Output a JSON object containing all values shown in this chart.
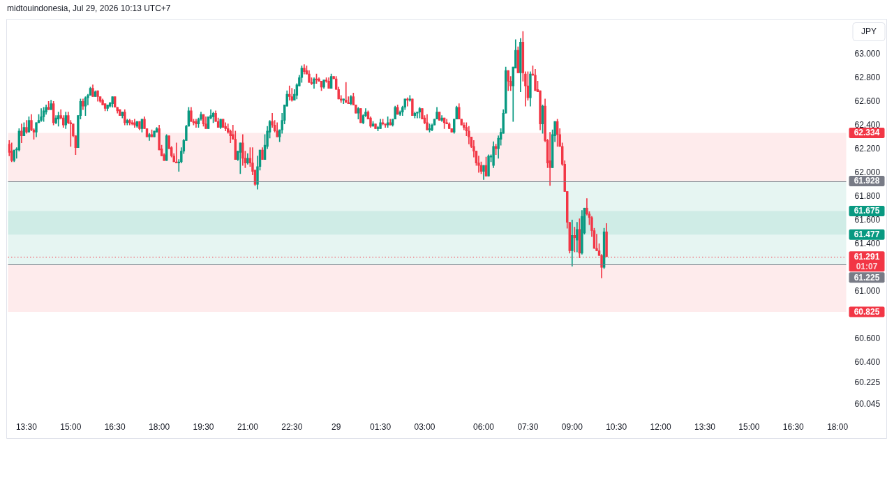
{
  "chart_data": {
    "type": "candlestick",
    "annotations": [
      "midtouindonesia, Jul 29, 2026 10:13 UTC+7"
    ],
    "ylabel": "JPY",
    "categories": [
      null,
      null,
      null,
      null,
      null,
      null,
      null,
      "13:30",
      null,
      null,
      null,
      null,
      null,
      null,
      null,
      null,
      null,
      null,
      null,
      null,
      null,
      null,
      null,
      null,
      null,
      "15:00",
      null,
      null,
      null,
      null,
      null,
      null,
      null,
      null,
      null,
      null,
      null,
      null,
      null,
      null,
      null,
      null,
      null,
      "16:30",
      null,
      null,
      null,
      null,
      null,
      null,
      null,
      null,
      null,
      null,
      null,
      null,
      null,
      null,
      null,
      null,
      null,
      "18:00",
      null,
      null,
      null,
      null,
      null,
      null,
      null,
      null,
      null,
      null,
      null,
      null,
      null,
      null,
      null,
      null,
      null,
      "19:30",
      null,
      null,
      null,
      null,
      null,
      null,
      null,
      null,
      null,
      null,
      null,
      null,
      null,
      null,
      null,
      null,
      null,
      "21:00",
      null,
      null,
      null,
      null,
      null,
      null,
      null,
      null,
      null,
      null,
      null,
      null,
      null,
      null,
      null,
      null,
      null,
      "22:30",
      null,
      null,
      null,
      null,
      null,
      null,
      null,
      null,
      null,
      null,
      null,
      null,
      null,
      null,
      null,
      null,
      null,
      "29",
      null,
      null,
      null,
      null,
      null,
      null,
      null,
      null,
      null,
      null,
      null,
      null,
      null,
      null,
      null,
      null,
      null,
      "01:30",
      null,
      null,
      null,
      null,
      null,
      null,
      null,
      null,
      null,
      null,
      null,
      null,
      null,
      null,
      null,
      null,
      null,
      "03:00",
      null,
      null,
      null,
      null,
      null,
      null,
      null,
      null,
      null,
      null,
      null,
      null,
      null,
      null,
      null,
      null,
      null,
      null,
      null,
      null,
      null,
      null,
      null,
      "06:00",
      null,
      null,
      null,
      null,
      null,
      null,
      null,
      null,
      null,
      null,
      null,
      null,
      null,
      null,
      null,
      null,
      null,
      "07:30",
      null,
      null,
      null,
      null,
      null,
      null,
      null,
      null,
      null,
      null,
      null,
      null,
      null,
      null,
      null,
      null,
      null,
      "09:00",
      null,
      null,
      null,
      null,
      null,
      null,
      null,
      null,
      null,
      null,
      null,
      null,
      null,
      null,
      null,
      null,
      null,
      "10:30",
      null,
      null,
      null,
      null,
      null,
      null,
      null,
      null,
      null,
      null,
      null,
      null,
      null,
      null,
      null,
      null,
      null,
      "12:00",
      null,
      null,
      null,
      null,
      null,
      null,
      null,
      null,
      null,
      null,
      null,
      null,
      null,
      null,
      null,
      null,
      null,
      "13:30",
      null,
      null,
      null,
      null,
      null,
      null,
      null,
      null,
      null,
      null,
      null,
      null,
      null,
      null,
      null,
      null,
      null,
      "15:00",
      null,
      null,
      null,
      null,
      null,
      null,
      null,
      null,
      null,
      null,
      null,
      null,
      null,
      null,
      null,
      null,
      null,
      "16:30",
      null,
      null,
      null,
      null,
      null,
      null,
      null,
      null,
      null,
      null,
      null,
      null,
      null,
      null,
      null,
      null,
      null,
      "18:00",
      null,
      null,
      null
    ],
    "ohlc": [
      [
        62.24,
        62.27,
        62.14,
        62.17
      ],
      [
        62.18,
        62.25,
        62.09,
        62.1
      ],
      [
        62.1,
        62.19,
        62.09,
        62.19
      ],
      [
        62.19,
        62.21,
        62.12,
        62.2
      ],
      [
        62.19,
        62.37,
        62.18,
        62.35
      ],
      [
        62.35,
        62.41,
        62.25,
        62.31
      ],
      [
        62.31,
        62.42,
        62.31,
        62.38
      ],
      [
        62.38,
        62.44,
        62.33,
        62.34
      ],
      [
        62.34,
        62.47,
        62.34,
        62.44
      ],
      [
        62.44,
        62.49,
        62.35,
        62.36
      ],
      [
        62.36,
        62.37,
        62.28,
        62.34
      ],
      [
        62.34,
        62.42,
        62.3,
        62.42
      ],
      [
        62.42,
        62.49,
        62.42,
        62.44
      ],
      [
        62.44,
        62.54,
        62.43,
        62.47
      ],
      [
        62.47,
        62.55,
        62.43,
        62.52
      ],
      [
        62.51,
        62.57,
        62.49,
        62.55
      ],
      [
        62.55,
        62.6,
        62.53,
        62.53
      ],
      [
        62.53,
        62.61,
        62.53,
        62.58
      ],
      [
        62.58,
        62.6,
        62.4,
        62.42
      ],
      [
        62.42,
        62.48,
        62.41,
        62.46
      ],
      [
        62.45,
        62.51,
        62.39,
        62.48
      ],
      [
        62.48,
        62.53,
        62.45,
        62.46
      ],
      [
        62.46,
        62.48,
        62.38,
        62.4
      ],
      [
        62.4,
        62.51,
        62.37,
        62.48
      ],
      [
        62.48,
        62.51,
        62.41,
        62.42
      ],
      [
        62.42,
        62.44,
        62.22,
        62.41
      ],
      [
        62.41,
        62.41,
        62.3,
        62.31
      ],
      [
        62.31,
        62.31,
        62.15,
        62.21
      ],
      [
        62.21,
        62.48,
        62.21,
        62.48
      ],
      [
        62.48,
        62.62,
        62.45,
        62.6
      ],
      [
        62.6,
        62.62,
        62.53,
        62.56
      ],
      [
        62.56,
        62.64,
        62.48,
        62.63
      ],
      [
        62.63,
        62.66,
        62.57,
        62.65
      ],
      [
        62.65,
        62.72,
        62.65,
        62.71
      ],
      [
        62.71,
        62.74,
        62.64,
        62.64
      ],
      [
        62.64,
        62.69,
        62.64,
        62.68
      ],
      [
        62.69,
        62.69,
        62.6,
        62.64
      ],
      [
        62.64,
        62.64,
        62.59,
        62.6
      ],
      [
        62.61,
        62.62,
        62.57,
        62.57
      ],
      [
        62.58,
        62.58,
        62.52,
        62.54
      ],
      [
        62.54,
        62.57,
        62.52,
        62.57
      ],
      [
        62.56,
        62.59,
        62.55,
        62.59
      ],
      [
        62.58,
        62.64,
        62.55,
        62.64
      ],
      [
        62.64,
        62.64,
        62.55,
        62.55
      ],
      [
        62.55,
        62.55,
        62.5,
        62.52
      ],
      [
        62.53,
        62.53,
        62.48,
        62.48
      ],
      [
        62.48,
        62.51,
        62.46,
        62.51
      ],
      [
        62.51,
        62.53,
        62.4,
        62.42
      ],
      [
        62.42,
        62.45,
        62.4,
        62.44
      ],
      [
        62.44,
        62.45,
        62.4,
        62.42
      ],
      [
        62.42,
        62.44,
        62.4,
        62.41
      ],
      [
        62.42,
        62.45,
        62.38,
        62.4
      ],
      [
        62.39,
        62.43,
        62.38,
        62.43
      ],
      [
        62.43,
        62.43,
        62.36,
        62.37
      ],
      [
        62.37,
        62.45,
        62.34,
        62.45
      ],
      [
        62.45,
        62.47,
        62.37,
        62.37
      ],
      [
        62.37,
        62.37,
        62.3,
        62.3
      ],
      [
        62.3,
        62.33,
        62.27,
        62.32
      ],
      [
        62.32,
        62.36,
        62.3,
        62.3
      ],
      [
        62.3,
        62.35,
        62.3,
        62.35
      ],
      [
        62.34,
        62.38,
        62.34,
        62.37
      ],
      [
        62.37,
        62.4,
        62.19,
        62.19
      ],
      [
        62.2,
        62.23,
        62.14,
        62.14
      ],
      [
        62.15,
        62.16,
        62.1,
        62.1
      ],
      [
        62.1,
        62.32,
        62.1,
        62.31
      ],
      [
        62.31,
        62.31,
        62.2,
        62.2
      ],
      [
        62.21,
        62.22,
        62.13,
        62.14
      ],
      [
        62.14,
        62.16,
        62.09,
        62.09
      ],
      [
        62.09,
        62.25,
        62.08,
        62.08
      ],
      [
        62.08,
        62.11,
        62.01,
        62.09
      ],
      [
        62.09,
        62.21,
        62.08,
        62.18
      ],
      [
        62.18,
        62.28,
        62.16,
        62.27
      ],
      [
        62.27,
        62.4,
        62.27,
        62.39
      ],
      [
        62.39,
        62.55,
        62.39,
        62.52
      ],
      [
        62.52,
        62.55,
        62.43,
        62.43
      ],
      [
        62.43,
        62.45,
        62.4,
        62.42
      ],
      [
        62.43,
        62.45,
        62.38,
        62.41
      ],
      [
        62.41,
        62.46,
        62.38,
        62.45
      ],
      [
        62.45,
        62.51,
        62.44,
        62.49
      ],
      [
        62.49,
        62.49,
        62.39,
        62.41
      ],
      [
        62.41,
        62.47,
        62.37,
        62.37
      ],
      [
        62.37,
        62.47,
        62.37,
        62.47
      ],
      [
        62.46,
        62.53,
        62.45,
        62.48
      ],
      [
        62.47,
        62.51,
        62.42,
        62.5
      ],
      [
        62.5,
        62.52,
        62.43,
        62.43
      ],
      [
        62.43,
        62.46,
        62.38,
        62.38
      ],
      [
        62.38,
        62.45,
        62.37,
        62.45
      ],
      [
        62.45,
        62.45,
        62.38,
        62.38
      ],
      [
        62.39,
        62.42,
        62.35,
        62.37
      ],
      [
        62.37,
        62.41,
        62.33,
        62.34
      ],
      [
        62.35,
        62.36,
        62.25,
        62.31
      ],
      [
        62.32,
        62.4,
        62.28,
        62.28
      ],
      [
        62.28,
        62.35,
        62.11,
        62.11
      ],
      [
        62.11,
        62.18,
        62.1,
        62.18
      ],
      [
        62.17,
        62.25,
        61.99,
        62.25
      ],
      [
        62.25,
        62.32,
        62.06,
        62.12
      ],
      [
        62.12,
        62.18,
        62.04,
        62.08
      ],
      [
        62.08,
        62.16,
        62.07,
        62.12
      ],
      [
        62.12,
        62.21,
        62.05,
        62.08
      ],
      [
        62.08,
        62.21,
        61.98,
        62.01
      ],
      [
        62.02,
        62.02,
        61.89,
        61.9
      ],
      [
        61.9,
        62.14,
        61.86,
        62.05
      ],
      [
        62.05,
        62.19,
        62.02,
        62.19
      ],
      [
        62.19,
        62.21,
        62.11,
        62.11
      ],
      [
        62.11,
        62.32,
        62.11,
        62.23
      ],
      [
        62.22,
        62.39,
        62.2,
        62.35
      ],
      [
        62.34,
        62.44,
        62.29,
        62.43
      ],
      [
        62.43,
        62.5,
        62.38,
        62.4
      ],
      [
        62.4,
        62.44,
        62.34,
        62.35
      ],
      [
        62.35,
        62.42,
        62.3,
        62.3
      ],
      [
        62.3,
        62.36,
        62.26,
        62.36
      ],
      [
        62.36,
        62.5,
        62.33,
        62.44
      ],
      [
        62.44,
        62.57,
        62.41,
        62.57
      ],
      [
        62.56,
        62.69,
        62.56,
        62.66
      ],
      [
        62.66,
        62.73,
        62.61,
        62.64
      ],
      [
        62.64,
        62.71,
        62.6,
        62.61
      ],
      [
        62.61,
        62.7,
        62.61,
        62.66
      ],
      [
        62.65,
        62.75,
        62.62,
        62.74
      ],
      [
        62.73,
        62.82,
        62.73,
        62.8
      ],
      [
        62.8,
        62.9,
        62.76,
        62.88
      ],
      [
        62.88,
        62.91,
        62.83,
        62.85
      ],
      [
        62.86,
        62.9,
        62.83,
        62.83
      ],
      [
        62.83,
        62.86,
        62.76,
        62.76
      ],
      [
        62.76,
        62.8,
        62.74,
        62.75
      ],
      [
        62.75,
        62.8,
        62.71,
        62.79
      ],
      [
        62.79,
        62.83,
        62.75,
        62.78
      ],
      [
        62.79,
        62.8,
        62.77,
        62.77
      ],
      [
        62.77,
        62.77,
        62.69,
        62.72
      ],
      [
        62.72,
        62.78,
        62.71,
        62.78
      ],
      [
        62.78,
        62.8,
        62.76,
        62.77
      ],
      [
        62.77,
        62.8,
        62.71,
        62.71
      ],
      [
        62.71,
        62.83,
        62.71,
        62.81
      ],
      [
        62.81,
        62.81,
        62.79,
        62.79
      ],
      [
        62.79,
        62.81,
        62.7,
        62.7
      ],
      [
        62.7,
        62.72,
        62.62,
        62.62
      ],
      [
        62.62,
        62.65,
        62.59,
        62.61
      ],
      [
        62.61,
        62.62,
        62.58,
        62.62
      ],
      [
        62.61,
        62.76,
        62.59,
        62.59
      ],
      [
        62.59,
        62.64,
        62.58,
        62.58
      ],
      [
        62.58,
        62.65,
        62.57,
        62.64
      ],
      [
        62.64,
        62.67,
        62.57,
        62.57
      ],
      [
        62.57,
        62.57,
        62.5,
        62.5
      ],
      [
        62.5,
        62.55,
        62.45,
        62.54
      ],
      [
        62.54,
        62.54,
        62.42,
        62.42
      ],
      [
        62.42,
        62.49,
        62.41,
        62.48
      ],
      [
        62.48,
        62.54,
        62.47,
        62.51
      ],
      [
        62.51,
        62.52,
        62.45,
        62.45
      ],
      [
        62.46,
        62.47,
        62.38,
        62.39
      ],
      [
        62.39,
        62.43,
        62.39,
        62.41
      ],
      [
        62.41,
        62.41,
        62.37,
        62.37
      ],
      [
        62.37,
        62.39,
        62.35,
        62.38
      ],
      [
        62.37,
        62.45,
        62.37,
        62.42
      ],
      [
        62.42,
        62.45,
        62.4,
        62.41
      ],
      [
        62.41,
        62.41,
        62.38,
        62.4
      ],
      [
        62.4,
        62.47,
        62.38,
        62.42
      ],
      [
        62.42,
        62.45,
        62.4,
        62.4
      ],
      [
        62.4,
        62.45,
        62.39,
        62.45
      ],
      [
        62.45,
        62.56,
        62.45,
        62.55
      ],
      [
        62.55,
        62.57,
        62.49,
        62.49
      ],
      [
        62.49,
        62.52,
        62.48,
        62.51
      ],
      [
        62.51,
        62.56,
        62.48,
        62.55
      ],
      [
        62.55,
        62.62,
        62.53,
        62.62
      ],
      [
        62.62,
        62.63,
        62.56,
        62.61
      ],
      [
        62.61,
        62.65,
        62.6,
        62.62
      ],
      [
        62.62,
        62.62,
        62.48,
        62.48
      ],
      [
        62.48,
        62.51,
        62.46,
        62.5
      ],
      [
        62.5,
        62.51,
        62.46,
        62.51
      ],
      [
        62.51,
        62.55,
        62.46,
        62.54
      ],
      [
        62.54,
        62.54,
        62.45,
        62.45
      ],
      [
        62.46,
        62.48,
        62.41,
        62.42
      ],
      [
        62.42,
        62.49,
        62.36,
        62.36
      ],
      [
        62.36,
        62.41,
        62.34,
        62.37
      ],
      [
        62.36,
        62.41,
        62.35,
        62.4
      ],
      [
        62.4,
        62.45,
        62.4,
        62.45
      ],
      [
        62.45,
        62.55,
        62.45,
        62.51
      ],
      [
        62.51,
        62.51,
        62.44,
        62.44
      ],
      [
        62.44,
        62.48,
        62.43,
        62.46
      ],
      [
        62.46,
        62.46,
        62.37,
        62.42
      ],
      [
        62.42,
        62.45,
        62.41,
        62.41
      ],
      [
        62.41,
        62.42,
        62.37,
        62.37
      ],
      [
        62.37,
        62.37,
        62.34,
        62.34
      ],
      [
        62.34,
        62.45,
        62.33,
        62.45
      ],
      [
        62.45,
        62.56,
        62.45,
        62.55
      ],
      [
        62.55,
        62.58,
        62.45,
        62.45
      ],
      [
        62.45,
        62.45,
        62.4,
        62.4
      ],
      [
        62.4,
        62.42,
        62.36,
        62.38
      ],
      [
        62.38,
        62.42,
        62.31,
        62.35
      ],
      [
        62.35,
        62.39,
        62.24,
        62.3
      ],
      [
        62.3,
        62.3,
        62.21,
        62.22
      ],
      [
        62.22,
        62.27,
        62.13,
        62.18
      ],
      [
        62.18,
        62.18,
        62.06,
        62.08
      ],
      [
        62.08,
        62.14,
        62.0,
        62.06
      ],
      [
        62.06,
        62.09,
        61.99,
        62.01
      ],
      [
        62.01,
        62.06,
        61.94,
        62.06
      ],
      [
        62.06,
        62.13,
        61.97,
        61.97
      ],
      [
        61.97,
        62.15,
        61.97,
        62.14
      ],
      [
        62.13,
        62.15,
        62.09,
        62.14
      ],
      [
        62.06,
        62.26,
        62.04,
        62.22
      ],
      [
        62.22,
        62.24,
        62.15,
        62.2
      ],
      [
        62.2,
        62.31,
        62.12,
        62.29
      ],
      [
        62.28,
        62.37,
        62.23,
        62.34
      ],
      [
        62.33,
        62.53,
        62.33,
        62.5
      ],
      [
        62.5,
        62.89,
        62.5,
        62.86
      ],
      [
        62.86,
        62.86,
        62.69,
        62.77
      ],
      [
        62.77,
        62.81,
        62.69,
        62.73
      ],
      [
        62.73,
        62.89,
        62.43,
        62.89
      ],
      [
        62.88,
        63.12,
        62.88,
        63.03
      ],
      [
        63.03,
        63.06,
        62.84,
        62.84
      ],
      [
        62.84,
        63.13,
        62.68,
        63.1
      ],
      [
        63.1,
        63.19,
        62.77,
        62.84
      ],
      [
        62.83,
        62.85,
        62.56,
        62.73
      ],
      [
        62.73,
        62.85,
        62.61,
        62.63
      ],
      [
        62.63,
        62.85,
        62.56,
        62.83
      ],
      [
        62.83,
        62.9,
        62.82,
        62.82
      ],
      [
        62.82,
        62.87,
        62.69,
        62.69
      ],
      [
        62.7,
        62.77,
        62.68,
        62.68
      ],
      [
        62.69,
        62.69,
        62.36,
        62.41
      ],
      [
        62.41,
        62.57,
        62.33,
        62.56
      ],
      [
        62.56,
        62.62,
        62.26,
        62.27
      ],
      [
        62.27,
        62.28,
        62.04,
        62.08
      ],
      [
        62.1,
        62.34,
        61.89,
        62.04
      ],
      [
        62.04,
        62.36,
        62.04,
        62.32
      ],
      [
        62.31,
        62.43,
        62.26,
        62.43
      ],
      [
        62.43,
        62.45,
        62.22,
        62.32
      ],
      [
        62.32,
        62.37,
        62.22,
        62.22
      ],
      [
        62.22,
        62.25,
        62.06,
        62.07
      ],
      [
        62.07,
        62.1,
        61.84,
        61.84
      ],
      [
        61.84,
        61.84,
        61.53,
        61.58
      ],
      [
        61.58,
        61.58,
        61.32,
        61.34
      ],
      [
        61.34,
        61.6,
        61.21,
        61.47
      ],
      [
        61.47,
        61.54,
        61.33,
        61.45
      ],
      [
        61.43,
        61.58,
        61.33,
        61.52
      ],
      [
        61.52,
        61.61,
        61.28,
        61.32
      ],
      [
        61.32,
        61.68,
        61.31,
        61.63
      ],
      [
        61.49,
        61.7,
        61.48,
        61.7
      ],
      [
        61.7,
        61.78,
        61.64,
        61.65
      ],
      [
        61.65,
        61.67,
        61.56,
        61.62
      ],
      [
        61.62,
        61.63,
        61.46,
        61.51
      ],
      [
        61.51,
        61.53,
        61.36,
        61.36
      ],
      [
        61.36,
        61.48,
        61.34,
        61.34
      ],
      [
        61.34,
        61.4,
        61.3,
        61.3
      ],
      [
        61.3,
        61.31,
        61.11,
        61.2
      ],
      [
        61.2,
        61.53,
        61.19,
        61.5
      ],
      [
        61.5,
        61.57,
        61.29,
        61.29
      ],
      null,
      null,
      null,
      null,
      null,
      null,
      null,
      null,
      null,
      null,
      null,
      null,
      null,
      null,
      null,
      null,
      null,
      null,
      null,
      null,
      null,
      null,
      null,
      null,
      null,
      null,
      null,
      null,
      null,
      null,
      null,
      null,
      null,
      null,
      null,
      null,
      null,
      null,
      null,
      null,
      null,
      null,
      null,
      null,
      null,
      null,
      null,
      null,
      null,
      null,
      null,
      null,
      null,
      null,
      null,
      null,
      null,
      null,
      null,
      null,
      null,
      null,
      null,
      null,
      null,
      null,
      null,
      null,
      null,
      null,
      null,
      null,
      null,
      null,
      null,
      null,
      null,
      null,
      null,
      null,
      null,
      null,
      null,
      null,
      null,
      null,
      null,
      null,
      null,
      null,
      null,
      null,
      null,
      null,
      null,
      null,
      null
    ],
    "colors": [
      "#f23645",
      "#f23645",
      "#089981",
      "#089981",
      "#089981",
      "#f23645",
      "#089981",
      "#f23645",
      "#089981",
      "#f23645",
      "#f23645",
      "#089981",
      "#089981",
      "#089981",
      "#089981",
      "#089981",
      "#f23645",
      "#089981",
      "#f23645",
      "#089981",
      "#089981",
      "#f23645",
      "#f23645",
      "#089981",
      "#f23645",
      "#f23645",
      "#f23645",
      "#f23645",
      "#089981",
      "#089981",
      "#f23645",
      "#089981",
      "#089981",
      "#089981",
      "#f23645",
      "#089981",
      "#f23645",
      "#f23645",
      "#f23645",
      "#f23645",
      "#089981",
      "#089981",
      "#089981",
      "#f23645",
      "#f23645",
      "#f23645",
      "#089981",
      "#f23645",
      "#089981",
      "#f23645",
      "#f23645",
      "#f23645",
      "#089981",
      "#f23645",
      "#089981",
      "#f23645",
      "#f23645",
      "#089981",
      "#f23645",
      "#089981",
      "#089981",
      "#f23645",
      "#f23645",
      "#f23645",
      "#089981",
      "#f23645",
      "#f23645",
      "#f23645",
      "#f23645",
      "#089981",
      "#089981",
      "#089981",
      "#089981",
      "#089981",
      "#f23645",
      "#f23645",
      "#f23645",
      "#089981",
      "#089981",
      "#f23645",
      "#f23645",
      "#089981",
      "#089981",
      "#089981",
      "#f23645",
      "#f23645",
      "#089981",
      "#f23645",
      "#f23645",
      "#f23645",
      "#f23645",
      "#f23645",
      "#f23645",
      "#089981",
      "#089981",
      "#f23645",
      "#f23645",
      "#089981",
      "#f23645",
      "#f23645",
      "#f23645",
      "#089981",
      "#089981",
      "#f23645",
      "#089981",
      "#089981",
      "#089981",
      "#f23645",
      "#f23645",
      "#f23645",
      "#089981",
      "#089981",
      "#089981",
      "#089981",
      "#f23645",
      "#f23645",
      "#089981",
      "#089981",
      "#089981",
      "#089981",
      "#f23645",
      "#f23645",
      "#f23645",
      "#f23645",
      "#089981",
      "#f23645",
      "#f23645",
      "#f23645",
      "#089981",
      "#f23645",
      "#f23645",
      "#089981",
      "#f23645",
      "#f23645",
      "#f23645",
      "#f23645",
      "#089981",
      "#f23645",
      "#f23645",
      "#089981",
      "#f23645",
      "#f23645",
      "#089981",
      "#f23645",
      "#089981",
      "#089981",
      "#f23645",
      "#f23645",
      "#089981",
      "#f23645",
      "#089981",
      "#089981",
      "#f23645",
      "#f23645",
      "#089981",
      "#f23645",
      "#089981",
      "#089981",
      "#f23645",
      "#089981",
      "#089981",
      "#089981",
      "#f23645",
      "#089981",
      "#f23645",
      "#089981",
      "#089981",
      "#089981",
      "#f23645",
      "#f23645",
      "#f23645",
      "#089981",
      "#089981",
      "#089981",
      "#089981",
      "#f23645",
      "#089981",
      "#f23645",
      "#f23645",
      "#f23645",
      "#f23645",
      "#089981",
      "#089981",
      "#f23645",
      "#f23645",
      "#f23645",
      "#f23645",
      "#f23645",
      "#f23645",
      "#f23645",
      "#f23645",
      "#f23645",
      "#f23645",
      "#089981",
      "#f23645",
      "#089981",
      "#089981",
      "#089981",
      "#f23645",
      "#089981",
      "#089981",
      "#089981",
      "#089981",
      "#f23645",
      "#f23645",
      "#089981",
      "#089981",
      "#f23645",
      "#089981",
      "#f23645",
      "#f23645",
      "#f23645",
      "#089981",
      "#f23645",
      "#f23645",
      "#f23645",
      "#f23645",
      "#089981",
      "#f23645",
      "#f23645",
      "#f23645",
      "#089981",
      "#089981",
      "#f23645",
      "#f23645",
      "#f23645",
      "#f23645",
      "#f23645",
      "#f23645",
      "#089981",
      "#f23645",
      "#089981",
      "#f23645",
      "#089981",
      "#089981",
      "#f23645",
      "#f23645",
      "#f23645",
      "#f23645",
      "#f23645",
      "#f23645",
      "#f23645",
      "#089981",
      "#f23645",
      null,
      null,
      null,
      null,
      null,
      null,
      null,
      null,
      null,
      null,
      null,
      null,
      null,
      null,
      null,
      null,
      null,
      null,
      null,
      null,
      null,
      null,
      null,
      null,
      null,
      null,
      null,
      null,
      null,
      null,
      null,
      null,
      null,
      null,
      null,
      null,
      null,
      null,
      null,
      null,
      null,
      null,
      null,
      null,
      null,
      null,
      null,
      null,
      null,
      null,
      null,
      null,
      null,
      null,
      null,
      null,
      null,
      null,
      null,
      null,
      null,
      null,
      null,
      null,
      null,
      null,
      null,
      null,
      null,
      null,
      null,
      null,
      null,
      null,
      null,
      null,
      null,
      null,
      null,
      null,
      null,
      null,
      null,
      null,
      null,
      null,
      null,
      null,
      null,
      null,
      null,
      null,
      null,
      null,
      null,
      null,
      null
    ],
    "ylim": [
      59.76,
      63.29
    ],
    "yticks": [
      {
        "value": 63,
        "label": "63.000"
      },
      {
        "value": 62.8,
        "label": "62.800"
      },
      {
        "value": 62.6,
        "label": "62.600"
      },
      {
        "value": 62.4,
        "label": "62.400"
      },
      {
        "value": 62.2,
        "label": "62.200"
      },
      {
        "value": 62,
        "label": "62.000"
      },
      {
        "value": 61.8,
        "label": "61.800"
      },
      {
        "value": 61.6,
        "label": "61.600"
      },
      {
        "value": 61.4,
        "label": "61.400"
      },
      {
        "value": 61,
        "label": "61.000"
      },
      {
        "value": 60.6,
        "label": "60.600"
      },
      {
        "value": 60.4,
        "label": "60.400"
      },
      {
        "value": 60.225,
        "label": "60.225"
      },
      {
        "value": 60.045,
        "label": "60.045"
      }
    ],
    "bands": [
      {
        "axis": "y",
        "from": 61.928,
        "to": 62.334,
        "label": "62.334",
        "color": "#f23645"
      },
      {
        "axis": "y",
        "from": 61.928,
        "to": 61.477,
        "label": "61.477",
        "color": "#089981"
      },
      {
        "axis": "y",
        "from": 61.225,
        "to": 61.675,
        "label": "61.675",
        "color": "#089981"
      },
      {
        "axis": "y",
        "from": 61.225,
        "to": 60.825,
        "label": "60.825",
        "color": "#f23645"
      }
    ],
    "ref_lines": [
      {
        "axis": "y",
        "value": 61.928,
        "label": "61.928",
        "color": "#787b86"
      },
      {
        "axis": "y",
        "value": 61.225,
        "label": "61.225",
        "color": "#787b86"
      },
      {
        "axis": "y",
        "value": 61.291,
        "label": "61.291\n01:07",
        "color": "#f23645",
        "line_style": "dotted"
      }
    ]
  }
}
